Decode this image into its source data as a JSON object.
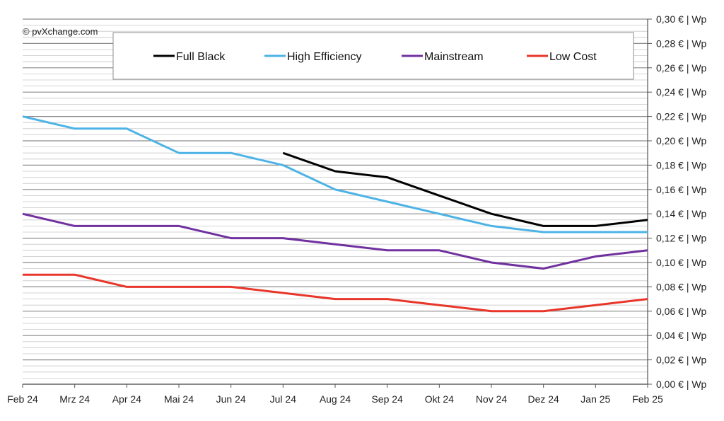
{
  "copyright": "© pvXchange.com",
  "chart_data": {
    "type": "line",
    "categories": [
      "Feb 24",
      "Mrz 24",
      "Apr 24",
      "Mai 24",
      "Jun 24",
      "Jul 24",
      "Aug 24",
      "Sep 24",
      "Okt 24",
      "Nov 24",
      "Dez 24",
      "Jan 25",
      "Feb 25"
    ],
    "ylim": [
      0,
      0.3
    ],
    "y_ticks": [
      0,
      0.02,
      0.04,
      0.06,
      0.08,
      0.1,
      0.12,
      0.14,
      0.16,
      0.18,
      0.2,
      0.22,
      0.24,
      0.26,
      0.28,
      0.3
    ],
    "y_tick_labels": [
      "0,00 € | Wp",
      "0,02 € | Wp",
      "0,04 € | Wp",
      "0,06 € | Wp",
      "0,08 € | Wp",
      "0,10 € | Wp",
      "0,12 € | Wp",
      "0,14 € | Wp",
      "0,16 € | Wp",
      "0,18 € | Wp",
      "0,20 € | Wp",
      "0,22 € | Wp",
      "0,24 € | Wp",
      "0,26 € | Wp",
      "0,28 € | Wp",
      "0,30 € | Wp"
    ],
    "minor_grid_step": 0.005,
    "y_axis_position": "right",
    "legend_position": "top-center",
    "series": [
      {
        "name": "Full Black",
        "color": "#000000",
        "values": [
          null,
          null,
          null,
          null,
          null,
          0.19,
          0.175,
          0.17,
          0.155,
          0.14,
          0.13,
          0.13,
          0.135
        ]
      },
      {
        "name": "High Efficiency",
        "color": "#4db3e6",
        "values": [
          0.22,
          0.21,
          0.21,
          0.19,
          0.19,
          0.18,
          0.16,
          0.15,
          0.14,
          0.13,
          0.125,
          0.125,
          0.125
        ]
      },
      {
        "name": "Mainstream",
        "color": "#7030a0",
        "values": [
          0.14,
          0.13,
          0.13,
          0.13,
          0.12,
          0.12,
          0.115,
          0.11,
          0.11,
          0.1,
          0.095,
          0.105,
          0.11
        ]
      },
      {
        "name": "Low Cost",
        "color": "#e8362a",
        "values": [
          0.09,
          0.09,
          0.08,
          0.08,
          0.08,
          0.075,
          0.07,
          0.07,
          0.065,
          0.06,
          0.06,
          0.065,
          0.07
        ]
      }
    ]
  }
}
